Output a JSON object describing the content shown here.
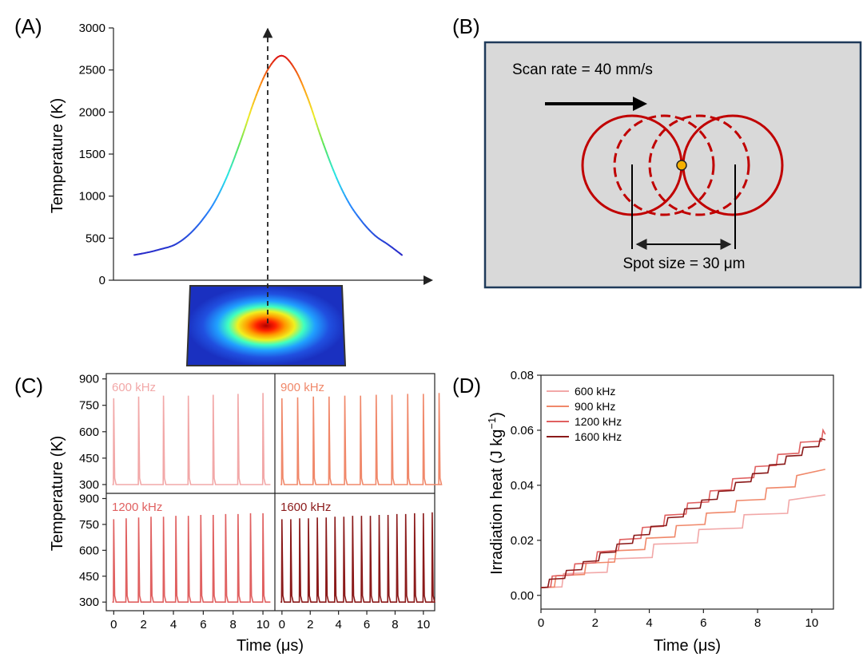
{
  "panels": {
    "a": {
      "label": "(A)"
    },
    "b": {
      "label": "(B)"
    },
    "c": {
      "label": "(C)"
    },
    "d": {
      "label": "(D)"
    }
  },
  "colors": {
    "panel_b_fill": "#d9d9d9",
    "panel_b_border": "#1f3a5a",
    "circle": "#c00000",
    "dot_fill": "#f5b000",
    "c_600": "#f2a8a8",
    "c_900": "#f0886a",
    "c_1200": "#e06060",
    "c_1600": "#8b1a1a"
  },
  "chart_data": [
    {
      "id": "A",
      "type": "line",
      "ylabel": "Temperature (K)",
      "xlabel": "",
      "ylim": [
        0,
        3000
      ],
      "yticks": [
        "0",
        "500",
        "1000",
        "1500",
        "2000",
        "2500",
        "3000"
      ],
      "x": [
        0,
        0.05,
        0.1,
        0.15,
        0.2,
        0.25,
        0.3,
        0.35,
        0.4,
        0.45,
        0.5,
        0.55,
        0.6,
        0.65,
        0.7,
        0.75,
        0.8,
        0.85,
        0.9,
        0.95,
        1.0
      ],
      "values": [
        300,
        330,
        370,
        420,
        530,
        700,
        930,
        1260,
        1680,
        2150,
        2510,
        2670,
        2510,
        2150,
        1680,
        1260,
        930,
        700,
        530,
        420,
        300
      ],
      "peak_value": 2670,
      "colormap": "jet",
      "grid": false
    },
    {
      "id": "B",
      "type": "diagram",
      "scan_rate_text": "Scan rate = 40 mm/s",
      "spot_size_text": "Spot size = 30 μm"
    },
    {
      "id": "C",
      "type": "line",
      "ylabel": "Temperature (K)",
      "xlabel": "Time (μs)",
      "ylim": [
        250,
        930
      ],
      "yticks": [
        "300",
        "450",
        "600",
        "750",
        "900"
      ],
      "xticks": [
        "0",
        "2",
        "4",
        "6",
        "8",
        "10"
      ],
      "xlim": [
        -0.5,
        10.8
      ],
      "base_value": 300,
      "series": [
        {
          "name": "600 kHz",
          "frequency_khz": 600,
          "peaks": [
            790,
            800,
            805,
            805,
            810,
            815,
            820
          ]
        },
        {
          "name": "900 kHz",
          "frequency_khz": 900,
          "peaks": [
            790,
            795,
            800,
            800,
            805,
            805,
            810,
            810,
            815,
            815,
            820
          ]
        },
        {
          "name": "1200 kHz",
          "frequency_khz": 1200,
          "peaks": [
            780,
            785,
            790,
            795,
            795,
            800,
            800,
            805,
            805,
            810,
            810,
            815,
            815
          ]
        },
        {
          "name": "1600 kHz",
          "frequency_khz": 1600,
          "peaks": [
            780,
            780,
            785,
            785,
            790,
            790,
            795,
            795,
            800,
            800,
            800,
            805,
            805,
            810,
            810,
            815,
            815,
            820
          ]
        }
      ]
    },
    {
      "id": "D",
      "type": "line",
      "ylabel": "Irradiation heat (J kg",
      "ylabel_sup": "−1",
      "ylabel_close": ")",
      "xlabel": "Time (μs)",
      "xlim": [
        0,
        10.8
      ],
      "ylim": [
        -0.005,
        0.08
      ],
      "xticks": [
        "0",
        "2",
        "4",
        "6",
        "8",
        "10"
      ],
      "yticks": [
        "0.00",
        "0.02",
        "0.04",
        "0.06",
        "0.08"
      ],
      "legend": "top-left",
      "series": [
        {
          "name": "600 kHz",
          "frequency_khz": 600,
          "end_value": 0.0365,
          "x": [
            0,
            10.5
          ],
          "values": [
            0.0028,
            0.0365
          ]
        },
        {
          "name": "900 kHz",
          "frequency_khz": 900,
          "end_value": 0.0458,
          "x": [
            0,
            10.5
          ],
          "values": [
            0.0028,
            0.0458
          ]
        },
        {
          "name": "1200 kHz",
          "frequency_khz": 1200,
          "end_value": 0.0585,
          "x": [
            0,
            10.5
          ],
          "values": [
            0.0028,
            0.0585
          ]
        },
        {
          "name": "1600 kHz",
          "frequency_khz": 1600,
          "end_value": 0.0565,
          "x": [
            0,
            10.5
          ],
          "values": [
            0.0028,
            0.0565
          ]
        }
      ]
    }
  ]
}
